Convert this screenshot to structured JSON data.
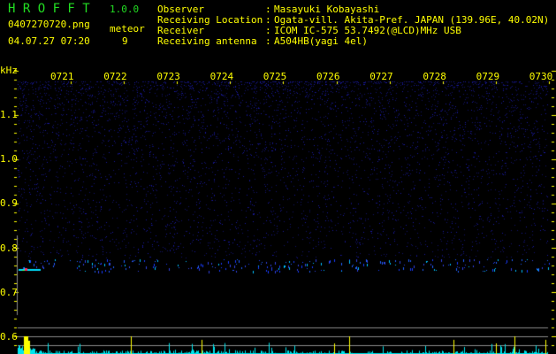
{
  "app": {
    "name": "H R O F F T",
    "version": "1.0.0"
  },
  "file": {
    "name": "0407270720.png",
    "datetime": "04.07.27 07:20"
  },
  "meteor": {
    "label": "meteor",
    "count": "9"
  },
  "info": [
    {
      "label": "Observer",
      "sep": ":",
      "value": "Masayuki Kobayashi"
    },
    {
      "label": "Receiving Location",
      "sep": ":",
      "value": "Ogata-vill. Akita-Pref. JAPAN (139.96E, 40.02N)"
    },
    {
      "label": "Receiver",
      "sep": ":",
      "value": "ICOM IC-575 53.7492(@LCD)MHz USB"
    },
    {
      "label": "Receiving antenna",
      "sep": ":",
      "value": "A504HB(yagi 4el)"
    }
  ],
  "axis": {
    "unit": "kHz",
    "freq_labels": [
      "1.1",
      "1.0",
      "0.9",
      "0.8",
      "0.7",
      "0.6"
    ],
    "time_labels": [
      "0721",
      "0722",
      "0723",
      "0724",
      "0725",
      "0726",
      "0727",
      "0728",
      "0729",
      "0730"
    ]
  },
  "colors": {
    "text": "#ffff00",
    "title": "#22dd22",
    "grid": "#888888",
    "histogram": "#00e5ee",
    "meteor_spike": "#ffff00",
    "noise": "#1a1aa0"
  }
}
